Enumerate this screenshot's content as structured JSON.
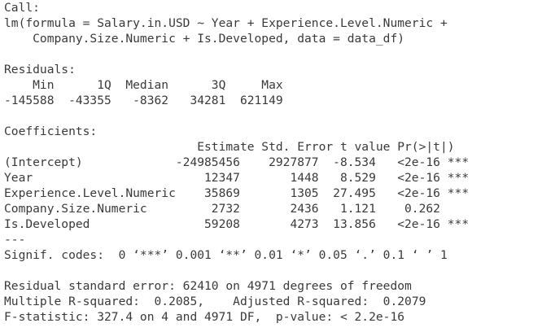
{
  "console": {
    "call_header": "Call:",
    "call_line1": "lm(formula = Salary.in.USD ~ Year + Experience.Level.Numeric +",
    "call_line2": "    Company.Size.Numeric + Is.Developed, data = data_df)",
    "residuals_header": "Residuals:",
    "residuals_labels": "    Min      1Q  Median      3Q     Max ",
    "residuals_values": "-145588  -43355   -8362   34281  621149 ",
    "coefficients_header": "Coefficients:",
    "coef_header_row": "                           Estimate Std. Error t value Pr(>|t|)    ",
    "coef_rows": [
      "(Intercept)             -24985456    2927877  -8.534   <2e-16 ***",
      "Year                        12347       1448   8.529   <2e-16 ***",
      "Experience.Level.Numeric    35869       1305  27.495   <2e-16 ***",
      "Company.Size.Numeric         2732       2436   1.121    0.262    ",
      "Is.Developed                59208       4273  13.856   <2e-16 ***"
    ],
    "separator": "---",
    "signif_codes": "Signif. codes:  0 ‘***’ 0.001 ‘**’ 0.01 ‘*’ 0.05 ‘.’ 0.1 ‘ ’ 1",
    "rse_line": "Residual standard error: 62410 on 4971 degrees of freedom",
    "r2_line": "Multiple R-squared:  0.2085,\tAdjusted R-squared:  0.2079 ",
    "fstat_line": "F-statistic: 327.4 on 4 and 4971 DF,  p-value: < 2.2e-16"
  }
}
